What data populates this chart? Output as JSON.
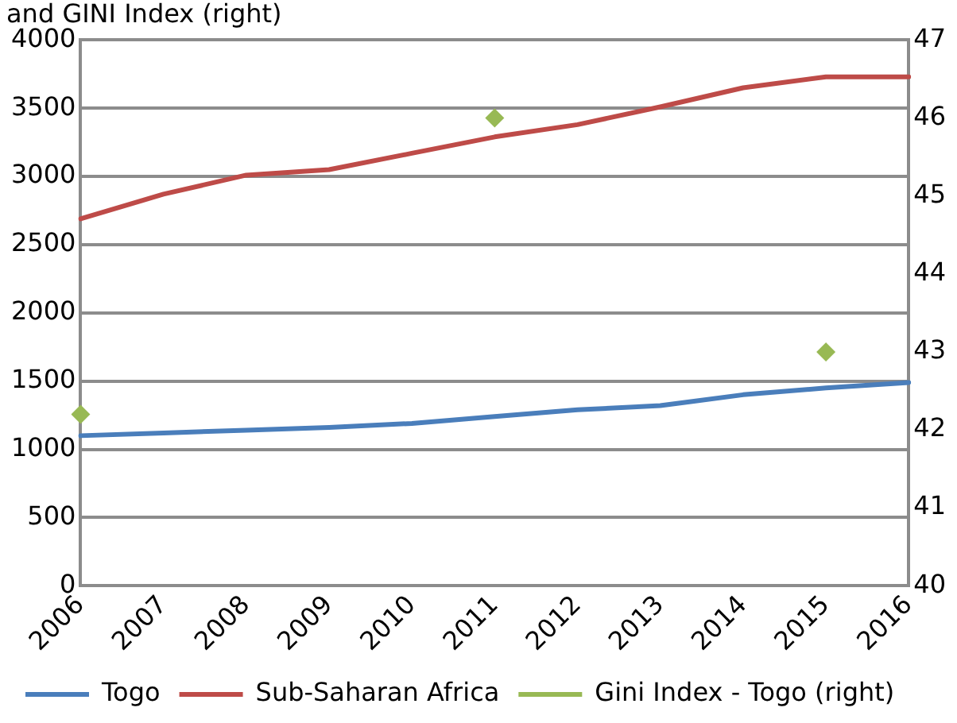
{
  "chart_data": {
    "type": "line",
    "title": "and GINI Index (right)",
    "categories": [
      "2006",
      "2007",
      "2008",
      "2009",
      "2010",
      "2011",
      "2012",
      "2013",
      "2014",
      "2015",
      "2016"
    ],
    "series": [
      {
        "name": "Togo",
        "color": "#4a7ebb",
        "values": [
          1100,
          1120,
          1140,
          1160,
          1190,
          1240,
          1290,
          1320,
          1400,
          1450,
          1490
        ]
      },
      {
        "name": "Sub-Saharan Africa",
        "color": "#be4b48",
        "values": [
          2690,
          2870,
          3010,
          3050,
          3170,
          3290,
          3380,
          3510,
          3650,
          3730,
          3730
        ]
      },
      {
        "name": "Gini Index - Togo (right)",
        "type": "scatter",
        "axis": "y2",
        "marker": "diamond",
        "color": "#98b954",
        "values": [
          42.2,
          null,
          null,
          null,
          null,
          46.0,
          null,
          null,
          null,
          43.0,
          null
        ]
      }
    ],
    "ylim": [
      0,
      4000
    ],
    "yticks": [
      0,
      500,
      1000,
      1500,
      2000,
      2500,
      3000,
      3500,
      4000
    ],
    "y2lim": [
      40,
      47
    ],
    "y2ticks": [
      40,
      41,
      42,
      43,
      44,
      45,
      46,
      47
    ],
    "grid": "y",
    "legend": "bottom",
    "marker": "none",
    "line_style": "solid"
  }
}
